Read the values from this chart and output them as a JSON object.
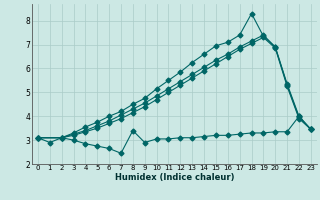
{
  "xlabel": "Humidex (Indice chaleur)",
  "bg_color": "#cce8e4",
  "line_color": "#006666",
  "grid_color": "#aaccc8",
  "xlim": [
    -0.5,
    23.5
  ],
  "ylim": [
    2.0,
    8.7
  ],
  "yticks": [
    2,
    3,
    4,
    5,
    6,
    7,
    8
  ],
  "xticks": [
    0,
    1,
    2,
    3,
    4,
    5,
    6,
    7,
    8,
    9,
    10,
    11,
    12,
    13,
    14,
    15,
    16,
    17,
    18,
    19,
    20,
    21,
    22,
    23
  ],
  "line1_x": [
    0,
    1,
    2,
    3,
    4,
    5,
    6,
    7,
    8,
    9,
    10,
    11,
    12,
    13,
    14,
    15,
    16,
    17,
    18,
    19,
    20,
    21,
    22,
    23
  ],
  "line1_y": [
    3.1,
    2.9,
    3.1,
    3.0,
    2.85,
    2.75,
    2.65,
    2.45,
    3.4,
    2.9,
    3.05,
    3.05,
    3.1,
    3.1,
    3.15,
    3.2,
    3.2,
    3.25,
    3.3,
    3.3,
    3.35,
    3.35,
    4.0,
    3.45
  ],
  "line2_x": [
    0,
    2,
    3,
    4,
    5,
    6,
    7,
    8,
    9,
    10,
    11,
    12,
    13,
    14,
    15,
    16,
    17,
    18,
    19,
    20,
    21,
    22,
    23
  ],
  "line2_y": [
    3.1,
    3.1,
    3.3,
    3.55,
    3.75,
    4.0,
    4.2,
    4.5,
    4.75,
    5.15,
    5.5,
    5.85,
    6.25,
    6.6,
    6.95,
    7.1,
    7.4,
    8.3,
    7.35,
    6.9,
    5.35,
    4.0,
    3.45
  ],
  "line3_x": [
    0,
    2,
    3,
    4,
    5,
    6,
    7,
    8,
    9,
    10,
    11,
    12,
    13,
    14,
    15,
    16,
    17,
    18,
    19,
    20,
    21,
    22,
    23
  ],
  "line3_y": [
    3.1,
    3.1,
    3.25,
    3.4,
    3.6,
    3.8,
    4.05,
    4.3,
    4.55,
    4.85,
    5.15,
    5.45,
    5.75,
    6.05,
    6.35,
    6.6,
    6.9,
    7.15,
    7.4,
    6.9,
    5.3,
    3.95,
    3.45
  ],
  "line4_x": [
    0,
    2,
    3,
    4,
    5,
    6,
    7,
    8,
    9,
    10,
    11,
    12,
    13,
    14,
    15,
    16,
    17,
    18,
    19,
    20,
    21,
    22,
    23
  ],
  "line4_y": [
    3.1,
    3.1,
    3.2,
    3.35,
    3.5,
    3.7,
    3.9,
    4.15,
    4.4,
    4.7,
    5.0,
    5.3,
    5.6,
    5.9,
    6.2,
    6.5,
    6.8,
    7.05,
    7.3,
    6.85,
    5.25,
    3.9,
    3.45
  ]
}
